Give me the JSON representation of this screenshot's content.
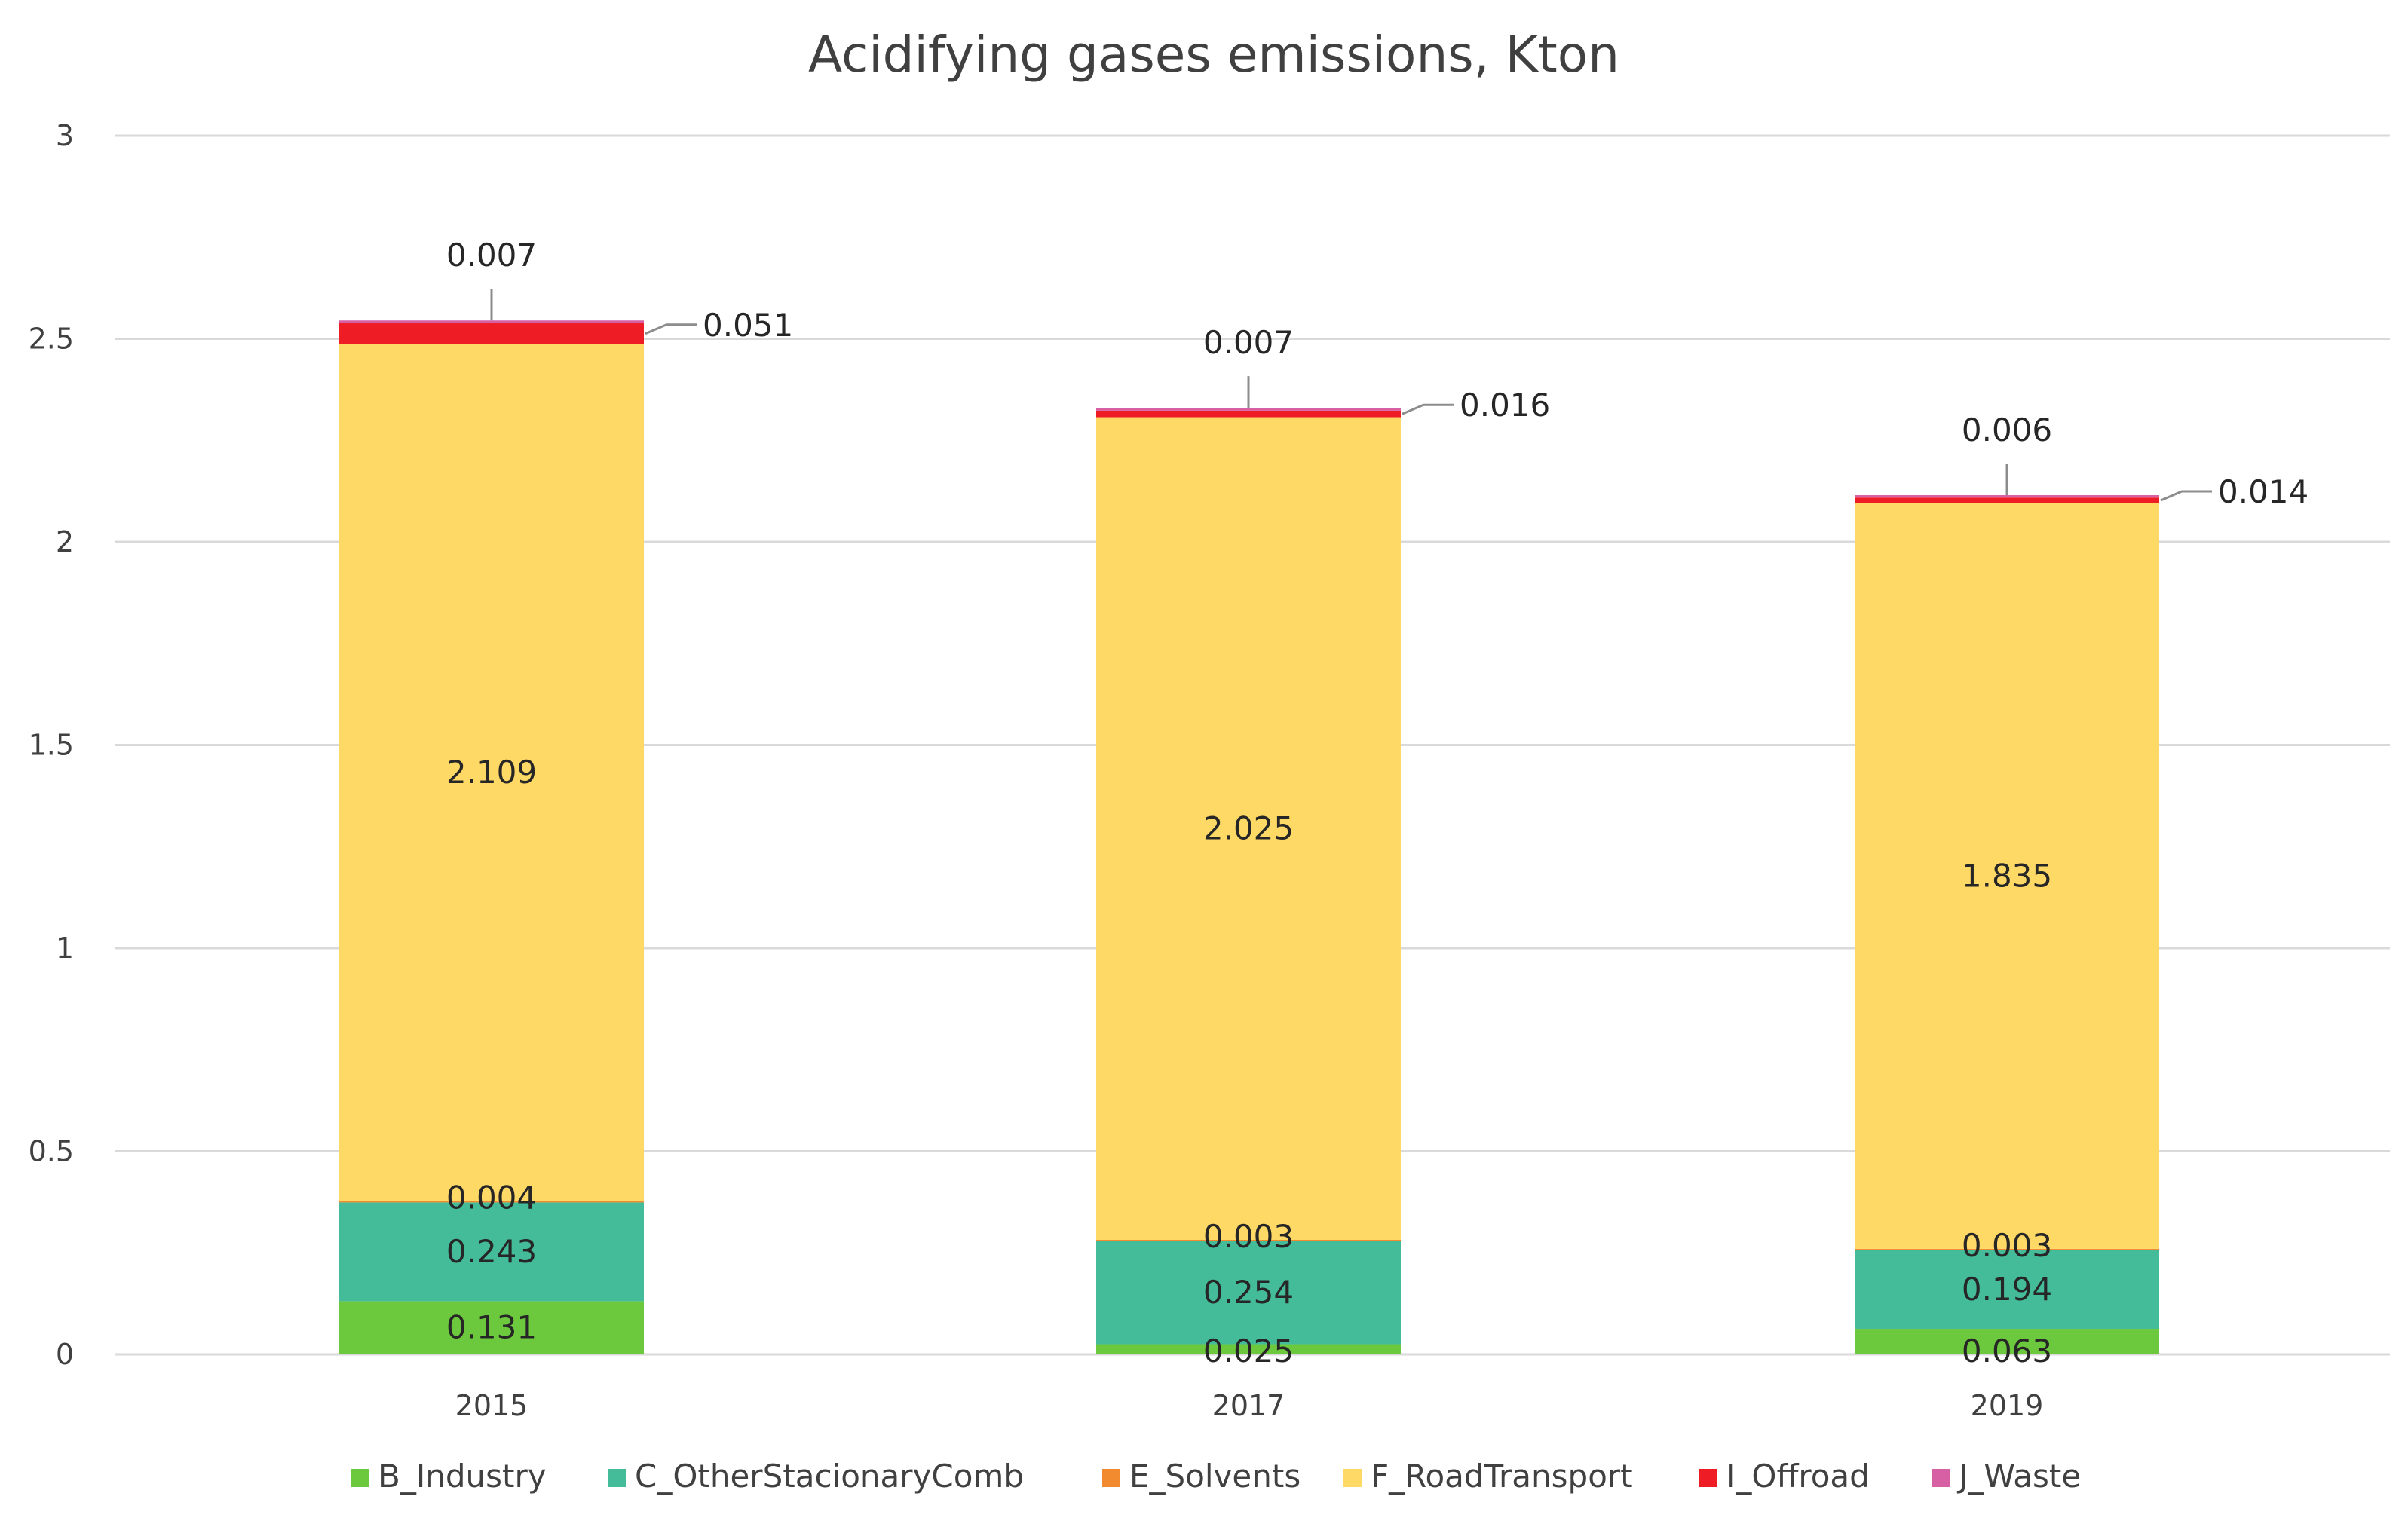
{
  "chart_data": {
    "type": "bar",
    "stacked": true,
    "title": "Acidifying gases emissions, Kton",
    "xlabel": "",
    "ylabel": "",
    "ylim": [
      0,
      3
    ],
    "y_ticks": [
      {
        "value": 0,
        "label": "0"
      },
      {
        "value": 0.5,
        "label": "0.5"
      },
      {
        "value": 1,
        "label": "1"
      },
      {
        "value": 1.5,
        "label": "1.5"
      },
      {
        "value": 2,
        "label": "2"
      },
      {
        "value": 2.5,
        "label": "2.5"
      },
      {
        "value": 3,
        "label": "3"
      }
    ],
    "grid": true,
    "legend_position": "bottom",
    "categories": [
      "2015",
      "2017",
      "2019"
    ],
    "series": [
      {
        "name": "B_Industry",
        "color": "#6cc93d",
        "values": [
          0.131,
          0.025,
          0.063
        ],
        "labels": [
          "0.131",
          "0.025",
          "0.063"
        ]
      },
      {
        "name": "C_OtherStacionaryComb",
        "color": "#44bc9a",
        "values": [
          0.243,
          0.254,
          0.194
        ],
        "labels": [
          "0.243",
          "0.254",
          "0.194"
        ]
      },
      {
        "name": "E_Solvents",
        "color": "#f28a30",
        "values": [
          0.004,
          0.003,
          0.003
        ],
        "labels": [
          "0.004",
          "0.003",
          "0.003"
        ]
      },
      {
        "name": "F_RoadTransport",
        "color": "#ffd966",
        "values": [
          2.109,
          2.025,
          1.835
        ],
        "labels": [
          "2.109",
          "2.025",
          "1.835"
        ]
      },
      {
        "name": "I_Offroad",
        "color": "#ee1c25",
        "values": [
          0.051,
          0.016,
          0.014
        ],
        "labels": [
          "0.051",
          "0.016",
          "0.014"
        ]
      },
      {
        "name": "J_Waste",
        "color": "#d660a3",
        "values": [
          0.007,
          0.007,
          0.006
        ],
        "labels": [
          "0.007",
          "0.007",
          "0.006"
        ]
      }
    ]
  }
}
